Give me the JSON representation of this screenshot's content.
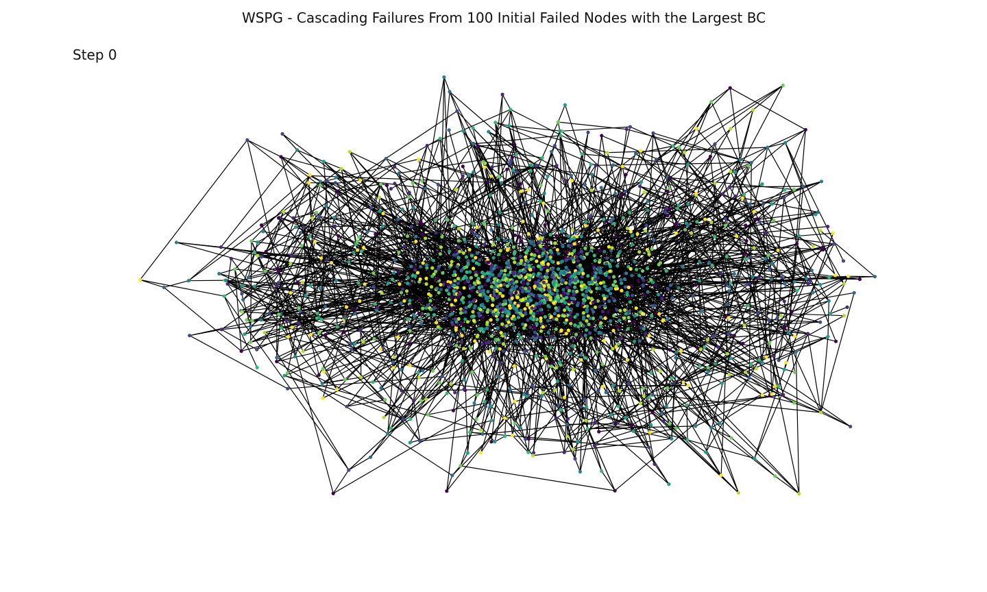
{
  "figure": {
    "title": "WSPG - Cascading Failures From 100 Initial Failed Nodes with the Largest BC",
    "step_label": "Step 0"
  },
  "graph": {
    "layout": "spring",
    "edge_color": "#000000",
    "colormap": "viridis",
    "palette": [
      "#440154",
      "#482878",
      "#3e4989",
      "#31688e",
      "#26828e",
      "#1f9e89",
      "#35b779",
      "#6ece58",
      "#b5de2b",
      "#fde725"
    ],
    "axes_visible": false
  }
}
